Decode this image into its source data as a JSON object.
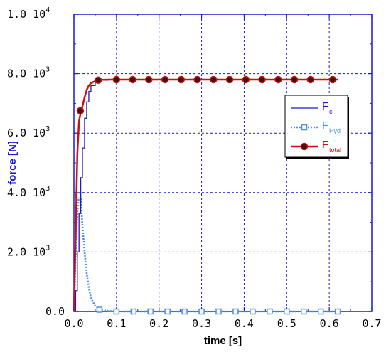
{
  "chart_data": {
    "type": "line",
    "xlabel": "time [s]",
    "ylabel": "force [N]",
    "xlim": [
      0,
      0.7
    ],
    "ylim": [
      0,
      10000
    ],
    "x_ticks": [
      0.0,
      0.1,
      0.2,
      0.3,
      0.4,
      0.5,
      0.6,
      0.7
    ],
    "x_tick_labels": [
      "0.0",
      "0.1",
      "0.2",
      "0.3",
      "0.4",
      "0.5",
      "0.6",
      "0.7"
    ],
    "y_ticks": [
      {
        "value": 0,
        "label": "0.0",
        "exp": ""
      },
      {
        "value": 2000,
        "label": "2.0 10",
        "exp": "3"
      },
      {
        "value": 4000,
        "label": "4.0 10",
        "exp": "3"
      },
      {
        "value": 6000,
        "label": "6.0 10",
        "exp": "3"
      },
      {
        "value": 8000,
        "label": "8.0 10",
        "exp": "3"
      },
      {
        "value": 10000,
        "label": "1.0 10",
        "exp": "4"
      }
    ],
    "grid": true,
    "legend_position": "right",
    "series": [
      {
        "name": "F",
        "name_sub": "c",
        "color": "#1a1acc",
        "style": "solid-step",
        "marker": "none",
        "x": [
          0,
          0.004,
          0.008,
          0.012,
          0.016,
          0.02,
          0.025,
          0.03,
          0.035,
          0.04,
          0.05,
          0.06,
          0.08,
          0.1,
          0.2,
          0.3,
          0.4,
          0.5,
          0.6,
          0.62
        ],
        "y": [
          0,
          700,
          2000,
          3300,
          4500,
          5500,
          6500,
          7050,
          7400,
          7600,
          7720,
          7780,
          7790,
          7800,
          7800,
          7800,
          7800,
          7800,
          7800,
          7800
        ]
      },
      {
        "name": "F",
        "name_sub": "Hyd",
        "color": "#4a90e2",
        "style": "dotted",
        "marker": "open-square",
        "x": [
          0,
          0.004,
          0.008,
          0.012,
          0.016,
          0.02,
          0.025,
          0.03,
          0.035,
          0.04,
          0.05,
          0.06,
          0.08,
          0.1,
          0.15,
          0.2,
          0.3,
          0.4,
          0.5,
          0.6,
          0.62
        ],
        "y": [
          0,
          1800,
          3300,
          3950,
          3800,
          2900,
          2000,
          1300,
          800,
          450,
          180,
          80,
          20,
          0,
          0,
          0,
          0,
          0,
          0,
          0,
          0
        ],
        "marker_x": [
          0.01,
          0.06,
          0.1,
          0.14,
          0.18,
          0.22,
          0.26,
          0.3,
          0.34,
          0.38,
          0.42,
          0.46,
          0.5,
          0.54,
          0.58,
          0.62
        ],
        "marker_y": [
          3900,
          60,
          0,
          0,
          0,
          0,
          0,
          0,
          0,
          0,
          0,
          0,
          0,
          0,
          0,
          0
        ]
      },
      {
        "name": "F",
        "name_sub": "total",
        "color": "#cc1111",
        "style": "solid",
        "marker": "filled-circle",
        "x": [
          0,
          0.004,
          0.008,
          0.012,
          0.016,
          0.02,
          0.025,
          0.03,
          0.035,
          0.04,
          0.05,
          0.06,
          0.08,
          0.1,
          0.2,
          0.3,
          0.4,
          0.5,
          0.6,
          0.62
        ],
        "y": [
          0,
          2500,
          5300,
          6400,
          6700,
          6900,
          7200,
          7450,
          7600,
          7680,
          7750,
          7790,
          7800,
          7800,
          7800,
          7800,
          7800,
          7800,
          7800,
          7800
        ],
        "marker_x": [
          0.015,
          0.057,
          0.1,
          0.138,
          0.176,
          0.214,
          0.252,
          0.29,
          0.328,
          0.366,
          0.404,
          0.442,
          0.48,
          0.518,
          0.556,
          0.608
        ],
        "marker_y": [
          6750,
          7780,
          7800,
          7800,
          7800,
          7800,
          7800,
          7800,
          7800,
          7800,
          7800,
          7800,
          7800,
          7800,
          7800,
          7800
        ]
      }
    ]
  }
}
